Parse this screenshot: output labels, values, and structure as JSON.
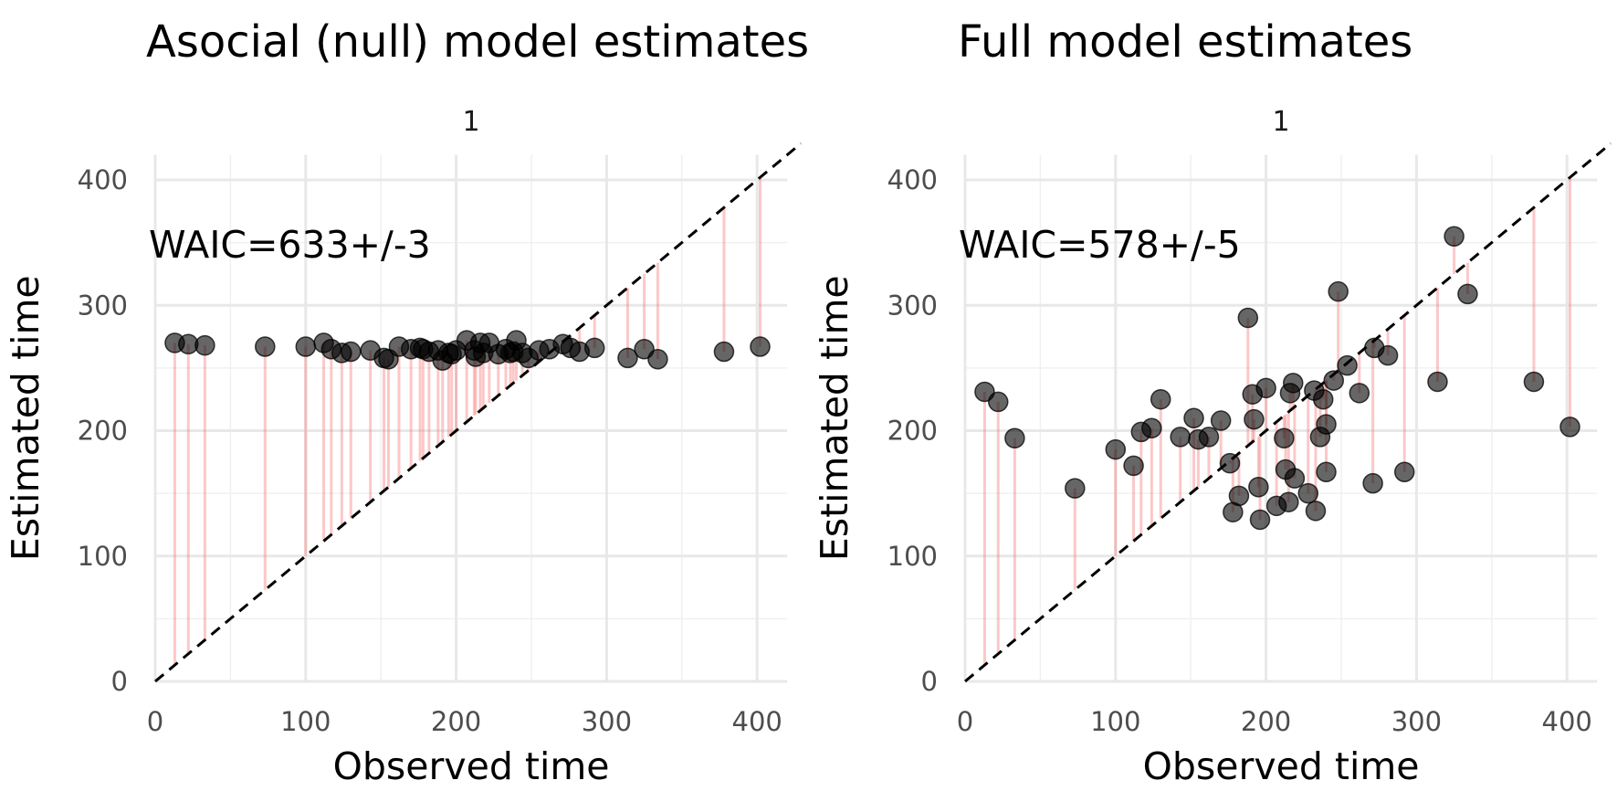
{
  "chart_data": [
    {
      "type": "scatter",
      "title": "Asocial (null) model estimates",
      "facet_label": "1",
      "xlabel": "Observed time",
      "ylabel": "Estimated time",
      "xlim": [
        0,
        420
      ],
      "ylim": [
        0,
        420
      ],
      "xticks": [
        0,
        100,
        200,
        300,
        400
      ],
      "yticks": [
        0,
        100,
        200,
        300,
        400
      ],
      "annotation": "WAIC=633+/-3",
      "reference_line": "y = x (dashed)",
      "residual_segments": true,
      "grid": true,
      "points": [
        {
          "x": 13,
          "y": 270
        },
        {
          "x": 22,
          "y": 269
        },
        {
          "x": 33,
          "y": 268
        },
        {
          "x": 73,
          "y": 267
        },
        {
          "x": 100,
          "y": 267
        },
        {
          "x": 112,
          "y": 270
        },
        {
          "x": 117,
          "y": 265
        },
        {
          "x": 124,
          "y": 262
        },
        {
          "x": 130,
          "y": 263
        },
        {
          "x": 143,
          "y": 264
        },
        {
          "x": 152,
          "y": 258
        },
        {
          "x": 155,
          "y": 257
        },
        {
          "x": 162,
          "y": 267
        },
        {
          "x": 170,
          "y": 265
        },
        {
          "x": 176,
          "y": 266
        },
        {
          "x": 178,
          "y": 265
        },
        {
          "x": 182,
          "y": 263
        },
        {
          "x": 188,
          "y": 264
        },
        {
          "x": 191,
          "y": 256
        },
        {
          "x": 195,
          "y": 262
        },
        {
          "x": 197,
          "y": 261
        },
        {
          "x": 200,
          "y": 264
        },
        {
          "x": 207,
          "y": 272
        },
        {
          "x": 212,
          "y": 264
        },
        {
          "x": 213,
          "y": 259
        },
        {
          "x": 216,
          "y": 270
        },
        {
          "x": 218,
          "y": 262
        },
        {
          "x": 222,
          "y": 270
        },
        {
          "x": 228,
          "y": 261
        },
        {
          "x": 233,
          "y": 265
        },
        {
          "x": 236,
          "y": 262
        },
        {
          "x": 238,
          "y": 263
        },
        {
          "x": 240,
          "y": 272
        },
        {
          "x": 244,
          "y": 262
        },
        {
          "x": 248,
          "y": 258
        },
        {
          "x": 255,
          "y": 264
        },
        {
          "x": 262,
          "y": 265
        },
        {
          "x": 271,
          "y": 269
        },
        {
          "x": 276,
          "y": 266
        },
        {
          "x": 282,
          "y": 263
        },
        {
          "x": 292,
          "y": 266
        },
        {
          "x": 314,
          "y": 258
        },
        {
          "x": 325,
          "y": 265
        },
        {
          "x": 334,
          "y": 257
        },
        {
          "x": 378,
          "y": 263
        },
        {
          "x": 402,
          "y": 267
        }
      ]
    },
    {
      "type": "scatter",
      "title": "Full model estimates",
      "facet_label": "1",
      "xlabel": "Observed time",
      "ylabel": "Estimated time",
      "xlim": [
        0,
        420
      ],
      "ylim": [
        0,
        420
      ],
      "xticks": [
        0,
        100,
        200,
        300,
        400
      ],
      "yticks": [
        0,
        100,
        200,
        300,
        400
      ],
      "annotation": "WAIC=578+/-5",
      "reference_line": "y = x (dashed)",
      "residual_segments": true,
      "grid": true,
      "points": [
        {
          "x": 13,
          "y": 231
        },
        {
          "x": 22,
          "y": 223
        },
        {
          "x": 33,
          "y": 194
        },
        {
          "x": 73,
          "y": 154
        },
        {
          "x": 100,
          "y": 185
        },
        {
          "x": 112,
          "y": 172
        },
        {
          "x": 117,
          "y": 199
        },
        {
          "x": 124,
          "y": 202
        },
        {
          "x": 130,
          "y": 225
        },
        {
          "x": 143,
          "y": 195
        },
        {
          "x": 152,
          "y": 210
        },
        {
          "x": 155,
          "y": 193
        },
        {
          "x": 162,
          "y": 195
        },
        {
          "x": 170,
          "y": 208
        },
        {
          "x": 176,
          "y": 174
        },
        {
          "x": 178,
          "y": 135
        },
        {
          "x": 182,
          "y": 148
        },
        {
          "x": 188,
          "y": 290
        },
        {
          "x": 191,
          "y": 229
        },
        {
          "x": 192,
          "y": 209
        },
        {
          "x": 195,
          "y": 155
        },
        {
          "x": 196,
          "y": 129
        },
        {
          "x": 200,
          "y": 234
        },
        {
          "x": 207,
          "y": 140
        },
        {
          "x": 212,
          "y": 194
        },
        {
          "x": 213,
          "y": 169
        },
        {
          "x": 215,
          "y": 143
        },
        {
          "x": 216,
          "y": 230
        },
        {
          "x": 218,
          "y": 238
        },
        {
          "x": 219,
          "y": 162
        },
        {
          "x": 228,
          "y": 150
        },
        {
          "x": 232,
          "y": 232
        },
        {
          "x": 233,
          "y": 136
        },
        {
          "x": 236,
          "y": 195
        },
        {
          "x": 238,
          "y": 225
        },
        {
          "x": 240,
          "y": 205
        },
        {
          "x": 240,
          "y": 167
        },
        {
          "x": 245,
          "y": 240
        },
        {
          "x": 248,
          "y": 311
        },
        {
          "x": 254,
          "y": 252
        },
        {
          "x": 262,
          "y": 230
        },
        {
          "x": 271,
          "y": 158
        },
        {
          "x": 272,
          "y": 266
        },
        {
          "x": 281,
          "y": 260
        },
        {
          "x": 292,
          "y": 167
        },
        {
          "x": 314,
          "y": 239
        },
        {
          "x": 325,
          "y": 355
        },
        {
          "x": 334,
          "y": 309
        },
        {
          "x": 378,
          "y": 239
        },
        {
          "x": 402,
          "y": 203
        }
      ]
    }
  ]
}
